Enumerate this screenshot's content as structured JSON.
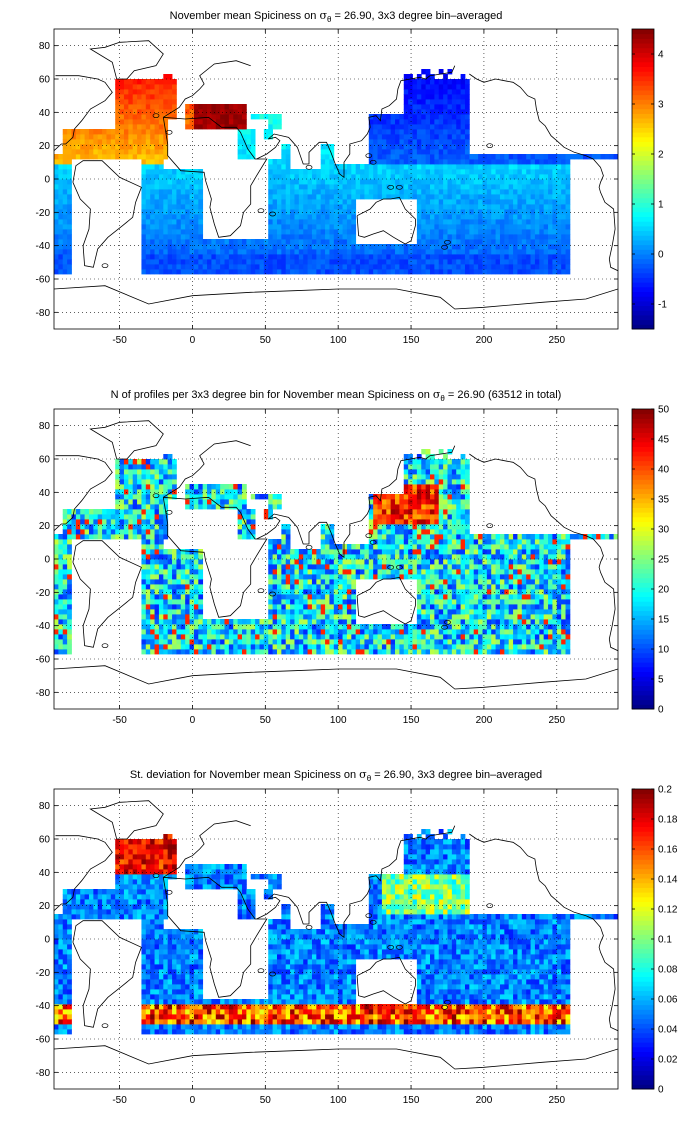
{
  "panels": [
    {
      "title_pre": "November mean Spiciness on ",
      "title_sigma": "σ",
      "title_sub": "θ",
      "title_post": " = 26.90, 3x3 degree bin–averaged",
      "field": "mean",
      "xticks": [
        -50,
        0,
        50,
        100,
        150,
        200,
        250
      ],
      "yticks": [
        80,
        60,
        40,
        20,
        0,
        -20,
        -40,
        -60,
        -80
      ],
      "xlim": [
        -95,
        292
      ],
      "ylim": [
        -90,
        90
      ],
      "colorbar": {
        "min": -1.5,
        "max": 4.5,
        "ticks": [
          -1,
          0,
          1,
          2,
          3,
          4
        ]
      }
    },
    {
      "title_pre": "N of profiles per 3x3 degree bin for November mean Spiciness on ",
      "title_sigma": "σ",
      "title_sub": "θ",
      "title_post": " = 26.90 (63512 in total)",
      "field": "count",
      "xticks": [
        -50,
        0,
        50,
        100,
        150,
        200,
        250
      ],
      "yticks": [
        80,
        60,
        40,
        20,
        0,
        -20,
        -40,
        -60,
        -80
      ],
      "xlim": [
        -95,
        292
      ],
      "ylim": [
        -90,
        90
      ],
      "colorbar": {
        "min": 0,
        "max": 50,
        "ticks": [
          0,
          5,
          10,
          15,
          20,
          25,
          30,
          35,
          40,
          45,
          50
        ]
      }
    },
    {
      "title_pre": "St. deviation for November mean Spiciness on ",
      "title_sigma": "σ",
      "title_sub": "θ",
      "title_post": " = 26.90, 3x3 degree bin–averaged",
      "field": "std",
      "xticks": [
        -50,
        0,
        50,
        100,
        150,
        200,
        250
      ],
      "yticks": [
        80,
        60,
        40,
        20,
        0,
        -20,
        -40,
        -60,
        -80
      ],
      "xlim": [
        -95,
        292
      ],
      "ylim": [
        -90,
        90
      ],
      "colorbar": {
        "min": 0,
        "max": 0.2,
        "ticks": [
          0,
          0.02,
          0.04,
          0.06,
          0.08,
          0.1,
          0.12,
          0.14,
          0.16,
          0.18,
          0.2
        ]
      }
    }
  ],
  "colormap": "jet",
  "grid": true
}
